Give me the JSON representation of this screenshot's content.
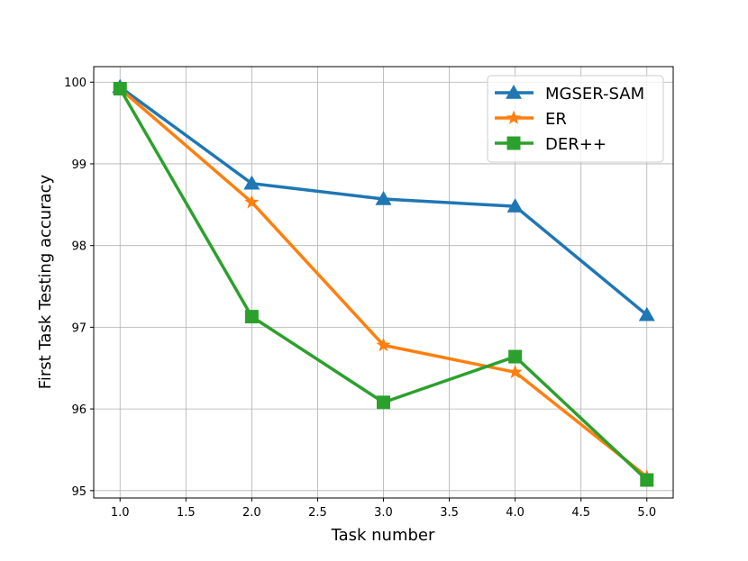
{
  "chart_data": {
    "type": "line",
    "title": "",
    "xlabel": "Task number",
    "ylabel": "First Task Testing accuracy",
    "xlim": [
      0.8,
      5.2
    ],
    "ylim": [
      94.91,
      100.19
    ],
    "xticks": [
      1.0,
      1.5,
      2.0,
      2.5,
      3.0,
      3.5,
      4.0,
      4.5,
      5.0
    ],
    "xtick_labels": [
      "1.0",
      "1.5",
      "2.0",
      "2.5",
      "3.0",
      "3.5",
      "4.0",
      "4.5",
      "5.0"
    ],
    "yticks": [
      95,
      96,
      97,
      98,
      99,
      100
    ],
    "ytick_labels": [
      "95",
      "96",
      "97",
      "98",
      "99",
      "100"
    ],
    "grid": true,
    "legend_placement": "top-right",
    "x": [
      1,
      2,
      3,
      4,
      5
    ],
    "series": [
      {
        "name": "MGSER-SAM",
        "color": "#1f77b4",
        "marker": "triangle",
        "values": [
          99.94,
          98.76,
          98.57,
          98.48,
          97.15
        ]
      },
      {
        "name": "ER",
        "color": "#ff7f0e",
        "marker": "star",
        "values": [
          99.92,
          98.53,
          96.78,
          96.45,
          95.17
        ]
      },
      {
        "name": "DER++",
        "color": "#2ca02c",
        "marker": "square",
        "values": [
          99.92,
          97.13,
          96.08,
          96.64,
          95.13
        ]
      }
    ]
  }
}
